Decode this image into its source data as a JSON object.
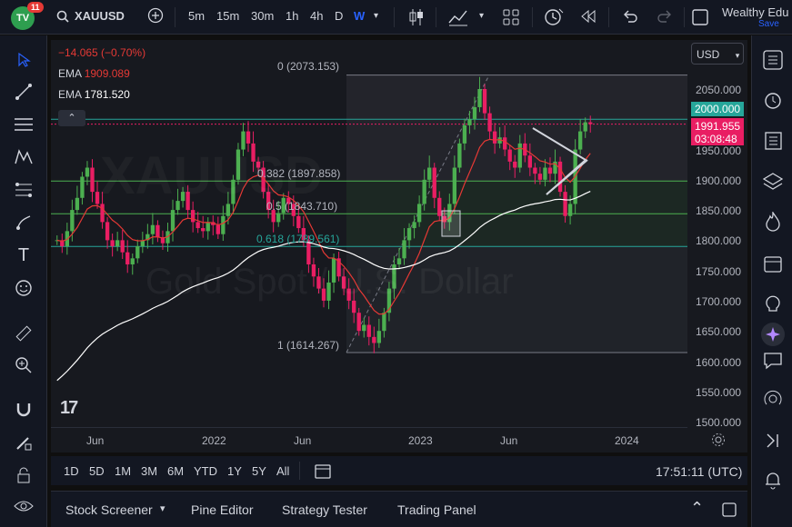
{
  "topbar": {
    "badge_count": "11",
    "symbol": "XAUUSD",
    "intervals": [
      "5m",
      "15m",
      "30m",
      "1h",
      "4h",
      "D",
      "W"
    ],
    "active_interval": "W",
    "account_name": "Wealthy Edu",
    "save_label": "Save"
  },
  "legend": {
    "change": "−14.065 (−0.70%)",
    "ema1_label": "EMA",
    "ema1_value": "1909.089",
    "ema2_label": "EMA",
    "ema2_value": "1781.520"
  },
  "price_scale": {
    "currency": "USD",
    "ticks": [
      "2050.000",
      "2000.000",
      "1950.000",
      "1900.000",
      "1850.000",
      "1800.000",
      "1750.000",
      "1700.000",
      "1650.000",
      "1600.000",
      "1550.000",
      "1500.000"
    ],
    "highlight_level": "2000.000",
    "current_price": "1991.955",
    "countdown": "03:08:48"
  },
  "time_axis": {
    "ticks": [
      "Jun",
      "2022",
      "Jun",
      "2023",
      "Jun",
      "2024"
    ]
  },
  "fib": {
    "level_0": "0 (2073.153)",
    "level_382": "0.382 (1897.858)",
    "level_5": "0.5 (1843.710)",
    "level_618": "0.618 (1789.561)",
    "level_1": "1 (1614.267)"
  },
  "watermark": {
    "line1": "XAUUSD",
    "line2": "Gold Spot / U.S. Dollar"
  },
  "range_bar": {
    "ranges": [
      "1D",
      "5D",
      "1M",
      "3M",
      "6M",
      "YTD",
      "1Y",
      "5Y",
      "All"
    ],
    "clock": "17:51:11 (UTC)"
  },
  "bottom_bar": {
    "tabs": [
      "Stock Screener",
      "Pine Editor",
      "Strategy Tester",
      "Trading Panel"
    ]
  },
  "colors": {
    "up": "#26a69a",
    "bull_candle": "#4caf50",
    "bear_candle": "#e91e63",
    "ema_fast": "#e53935",
    "ema_slow": "#ffffff",
    "accent": "#2962ff"
  },
  "chart_data": {
    "type": "candlestick",
    "timeframe": "W",
    "ylim": [
      1500,
      2080
    ],
    "candles_close": [
      1800,
      1790,
      1815,
      1850,
      1870,
      1905,
      1920,
      1880,
      1860,
      1830,
      1800,
      1790,
      1800,
      1780,
      1760,
      1770,
      1790,
      1800,
      1810,
      1825,
      1805,
      1795,
      1815,
      1850,
      1865,
      1880,
      1850,
      1830,
      1820,
      1815,
      1830,
      1825,
      1810,
      1840,
      1860,
      1900,
      1950,
      1980,
      1960,
      1930,
      1920,
      1880,
      1850,
      1830,
      1845,
      1870,
      1860,
      1840,
      1820,
      1800,
      1760,
      1740,
      1720,
      1700,
      1730,
      1770,
      1740,
      1720,
      1700,
      1680,
      1650,
      1660,
      1640,
      1630,
      1650,
      1680,
      1720,
      1760,
      1770,
      1800,
      1820,
      1830,
      1860,
      1900,
      1920,
      1870,
      1840,
      1830,
      1860,
      1920,
      1960,
      1990,
      2000,
      2020,
      2050,
      2010,
      1980,
      1960,
      1970,
      1950,
      1930,
      1920,
      1960,
      1940,
      1920,
      1910,
      1900,
      1920,
      1910,
      1930,
      1880,
      1840,
      1860,
      1950,
      1980,
      1995,
      1992
    ]
  }
}
